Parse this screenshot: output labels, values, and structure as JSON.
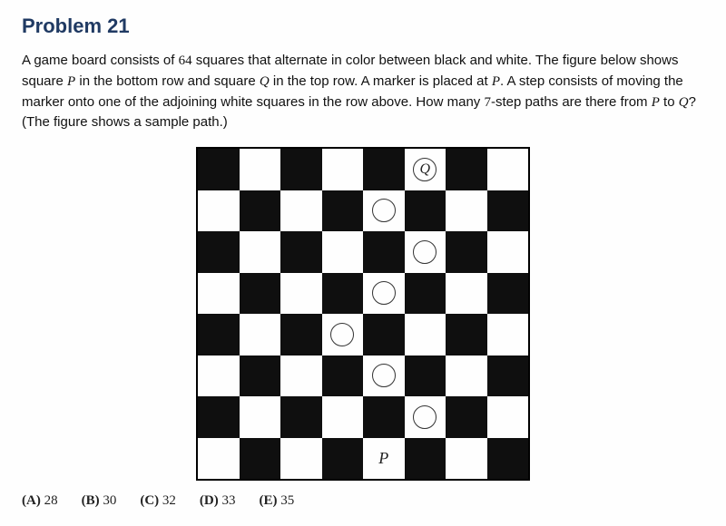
{
  "title": "Problem 21",
  "prose_parts": {
    "p1": "A game board consists of ",
    "n64": "64",
    "p2": " squares that alternate in color between black and white. The figure below shows square ",
    "vP1": "P",
    "p3": " in the bottom row and square ",
    "vQ1": "Q",
    "p4": " in the top row. A marker is placed at ",
    "vP2": "P",
    "p5": ". A step consists of moving the marker onto one of the adjoining white squares in the row above. How many ",
    "n7": "7",
    "p6": "-step paths are there from ",
    "vP3": "P",
    "p7": " to ",
    "vQ2": "Q",
    "p8": "? (The figure shows a sample path.)"
  },
  "board": {
    "size": 8,
    "black_color": "#0f0f0f",
    "white_color": "#fefefe",
    "top_left_black": true,
    "Q_label": "Q",
    "P_label": "P",
    "P_pos": {
      "row": 7,
      "col": 4
    },
    "Q_pos": {
      "row": 0,
      "col": 5
    },
    "path_markers": [
      {
        "row": 0,
        "col": 5,
        "label": "Q"
      },
      {
        "row": 1,
        "col": 4,
        "label": ""
      },
      {
        "row": 2,
        "col": 5,
        "label": ""
      },
      {
        "row": 3,
        "col": 4,
        "label": ""
      },
      {
        "row": 4,
        "col": 3,
        "label": ""
      },
      {
        "row": 5,
        "col": 4,
        "label": ""
      },
      {
        "row": 6,
        "col": 5,
        "label": ""
      }
    ]
  },
  "choices": [
    {
      "key": "(A)",
      "val": "28"
    },
    {
      "key": "(B)",
      "val": "30"
    },
    {
      "key": "(C)",
      "val": "32"
    },
    {
      "key": "(D)",
      "val": "33"
    },
    {
      "key": "(E)",
      "val": "35"
    }
  ]
}
